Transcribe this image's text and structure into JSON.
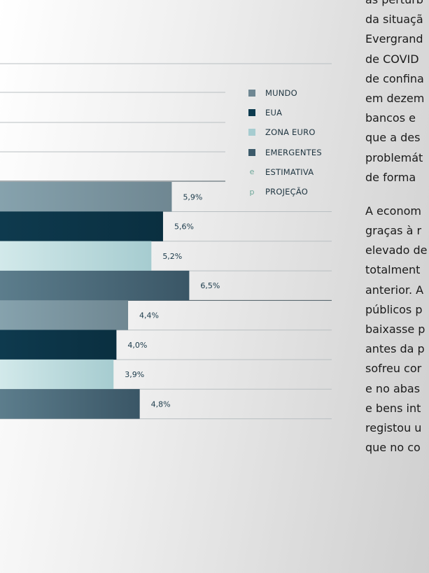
{
  "chart_data": {
    "type": "bar",
    "orientation": "horizontal",
    "groups": [
      {
        "bars": [
          {
            "series": "MUNDO",
            "value": 5.9,
            "label": "5,9%"
          },
          {
            "series": "EUA",
            "value": 5.6,
            "label": "5,6%"
          },
          {
            "series": "ZONA EURO",
            "value": 5.2,
            "label": "5,2%"
          },
          {
            "series": "EMERGENTES",
            "value": 6.5,
            "label": "6,5%"
          }
        ]
      },
      {
        "bars": [
          {
            "series": "MUNDO",
            "value": 4.4,
            "label": "4,4%"
          },
          {
            "series": "EUA",
            "value": 4.0,
            "label": "4,0%"
          },
          {
            "series": "ZONA EURO",
            "value": 3.9,
            "label": "3,9%"
          },
          {
            "series": "EMERGENTES",
            "value": 4.8,
            "label": "4,8%"
          }
        ]
      }
    ],
    "legend": [
      {
        "marker": "square",
        "color": "#6f8792",
        "label": "MUNDO"
      },
      {
        "marker": "square",
        "color": "#0d3b4f",
        "label": "EUA"
      },
      {
        "marker": "square",
        "color": "#a6ccd0",
        "label": "ZONA EURO"
      },
      {
        "marker": "square",
        "color": "#3c5a6a",
        "label": "EMERGENTES"
      },
      {
        "marker": "letter",
        "letter": "e",
        "label": "ESTIMATIVA"
      },
      {
        "marker": "letter",
        "letter": "p",
        "label": "PROJEÇÃO"
      }
    ],
    "legend_position": "top-right",
    "colors": {
      "MUNDO": [
        "#86a2ad",
        "#6f8792"
      ],
      "EUA": [
        "#0e3a4e",
        "#0a2f40"
      ],
      "ZONA EURO": [
        "#d2e9ea",
        "#a6ccd0"
      ],
      "EMERGENTES": [
        "#5c7d8c",
        "#3a5666"
      ]
    },
    "grid": true
  },
  "text": {
    "paragraph1": [
      "as perturb",
      "da situaçã",
      "Evergrand",
      "de COVID",
      "de confina",
      "em dezem",
      "bancos e",
      "que a des",
      "problemát",
      "de forma"
    ],
    "paragraph2": [
      "A econom",
      "graças à r",
      "elevado de",
      "totalment",
      "anterior. A",
      "públicos p",
      "baixasse p",
      "antes da p",
      "sofreu cor",
      "e no abas",
      "e bens int",
      "registou u",
      "que no co"
    ]
  }
}
